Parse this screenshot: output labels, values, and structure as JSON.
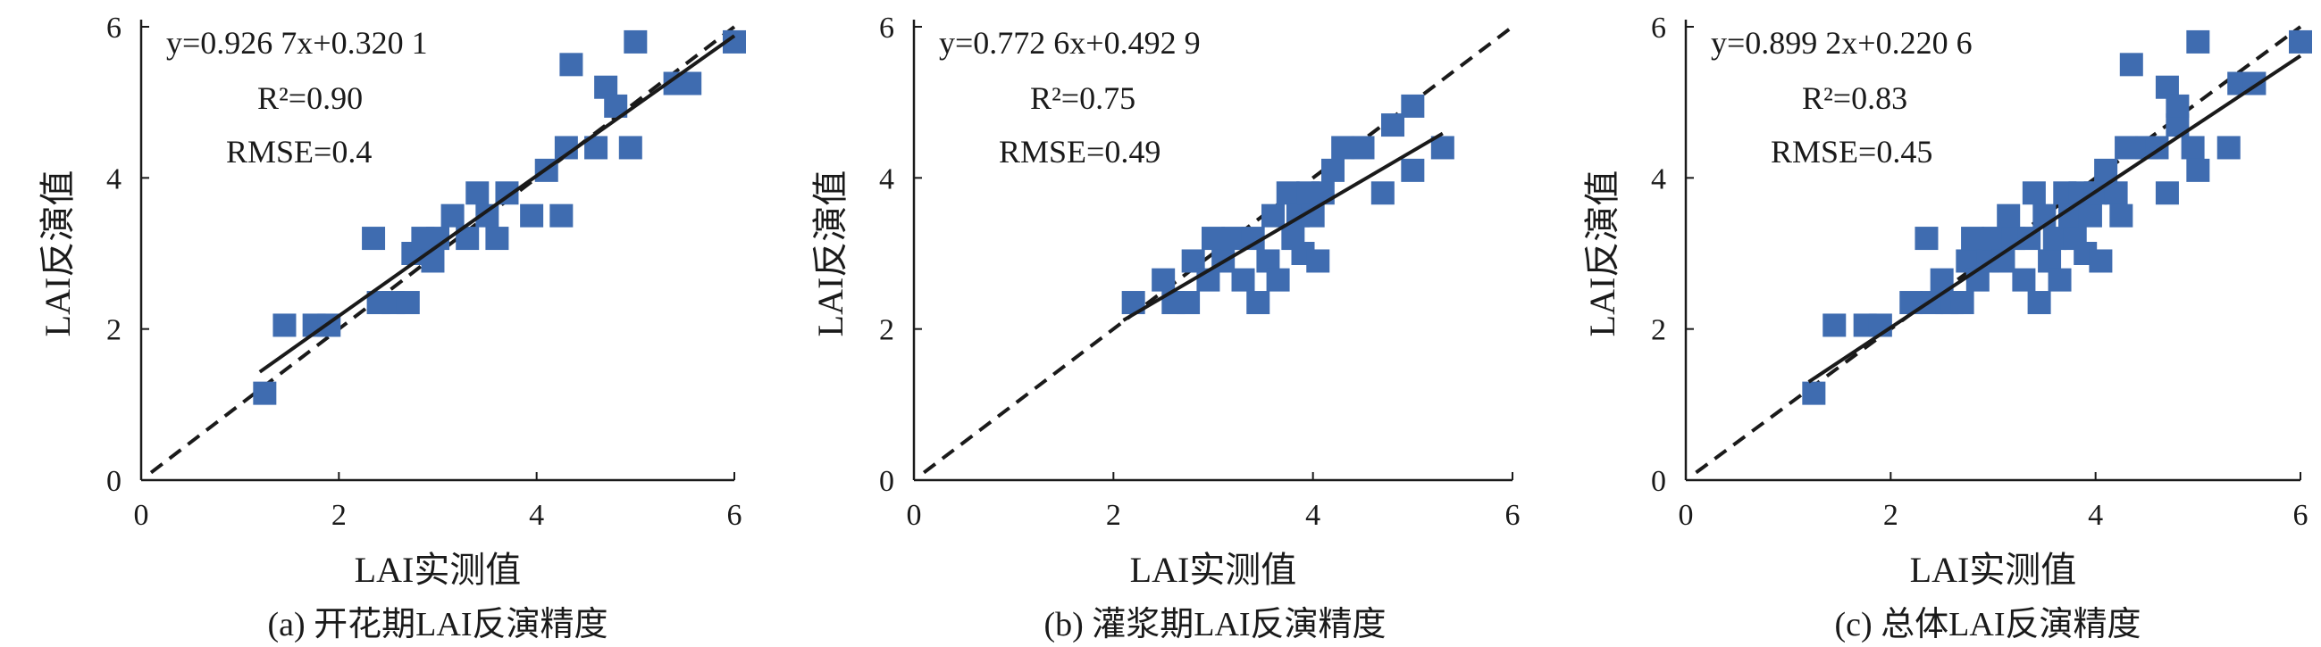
{
  "chart_data": [
    {
      "type": "scatter",
      "caption": "(a) 开花期LAI反演精度",
      "xlabel": "LAI实测值",
      "ylabel": "LAI反演值",
      "xlim": [
        0,
        6
      ],
      "ylim": [
        0,
        6
      ],
      "xticks": [
        "0",
        "2",
        "4",
        "6"
      ],
      "yticks": [
        "0",
        "2",
        "4",
        "6"
      ],
      "equation": "y=0.926 7x+0.320 1",
      "r2": "R²=0.90",
      "rmse": "RMSE=0.4",
      "marker_color": "#3F6CB0",
      "fit_line": {
        "slope": 0.9267,
        "intercept": 0.3201,
        "x_range": [
          1.2,
          6.0
        ]
      },
      "identity_line": {
        "x_range": [
          0.1,
          6.0
        ]
      },
      "points": [
        [
          1.25,
          1.15
        ],
        [
          1.45,
          2.05
        ],
        [
          1.75,
          2.05
        ],
        [
          1.9,
          2.05
        ],
        [
          2.35,
          3.2
        ],
        [
          2.4,
          2.35
        ],
        [
          2.55,
          2.35
        ],
        [
          2.7,
          2.35
        ],
        [
          2.75,
          3.0
        ],
        [
          2.85,
          3.2
        ],
        [
          2.95,
          2.9
        ],
        [
          3.0,
          3.2
        ],
        [
          3.15,
          3.5
        ],
        [
          3.3,
          3.2
        ],
        [
          3.4,
          3.8
        ],
        [
          3.5,
          3.5
        ],
        [
          3.6,
          3.2
        ],
        [
          3.7,
          3.8
        ],
        [
          3.95,
          3.5
        ],
        [
          4.1,
          4.1
        ],
        [
          4.25,
          3.5
        ],
        [
          4.3,
          4.4
        ],
        [
          4.35,
          5.5
        ],
        [
          4.6,
          4.4
        ],
        [
          4.7,
          5.2
        ],
        [
          4.8,
          4.95
        ],
        [
          4.95,
          4.4
        ],
        [
          5.0,
          5.8
        ],
        [
          5.4,
          5.25
        ],
        [
          5.55,
          5.25
        ],
        [
          6.0,
          5.8
        ]
      ]
    },
    {
      "type": "scatter",
      "caption": "(b) 灌浆期LAI反演精度",
      "xlabel": "LAI实测值",
      "ylabel": "LAI反演值",
      "xlim": [
        0,
        6
      ],
      "ylim": [
        0,
        6
      ],
      "xticks": [
        "0",
        "2",
        "4",
        "6"
      ],
      "yticks": [
        "0",
        "2",
        "4",
        "6"
      ],
      "equation": "y=0.772 6x+0.492 9",
      "r2": "R²=0.75",
      "rmse": "RMSE=0.49",
      "marker_color": "#3F6CB0",
      "fit_line": {
        "slope": 0.7726,
        "intercept": 0.4929,
        "x_range": [
          2.1,
          5.3
        ]
      },
      "identity_line": {
        "x_range": [
          0.1,
          6.0
        ]
      },
      "points": [
        [
          2.2,
          2.35
        ],
        [
          2.5,
          2.65
        ],
        [
          2.6,
          2.35
        ],
        [
          2.75,
          2.35
        ],
        [
          2.8,
          2.9
        ],
        [
          2.95,
          2.65
        ],
        [
          3.0,
          3.2
        ],
        [
          3.1,
          2.9
        ],
        [
          3.2,
          3.2
        ],
        [
          3.3,
          2.65
        ],
        [
          3.4,
          3.2
        ],
        [
          3.45,
          2.35
        ],
        [
          3.55,
          2.9
        ],
        [
          3.6,
          3.5
        ],
        [
          3.65,
          2.65
        ],
        [
          3.75,
          3.8
        ],
        [
          3.8,
          3.2
        ],
        [
          3.85,
          3.5
        ],
        [
          3.9,
          3.0
        ],
        [
          3.95,
          3.8
        ],
        [
          4.0,
          3.5
        ],
        [
          4.05,
          2.9
        ],
        [
          4.1,
          3.8
        ],
        [
          4.2,
          4.1
        ],
        [
          4.3,
          4.4
        ],
        [
          4.5,
          4.4
        ],
        [
          4.7,
          3.8
        ],
        [
          4.8,
          4.7
        ],
        [
          5.0,
          4.95
        ],
        [
          5.0,
          4.1
        ],
        [
          5.3,
          4.4
        ]
      ]
    },
    {
      "type": "scatter",
      "caption": "(c) 总体LAI反演精度",
      "xlabel": "LAI实测值",
      "ylabel": "LAI反演值",
      "xlim": [
        0,
        6
      ],
      "ylim": [
        0,
        6
      ],
      "xticks": [
        "0",
        "2",
        "4",
        "6"
      ],
      "yticks": [
        "0",
        "2",
        "4",
        "6"
      ],
      "equation": "y=0.899 2x+0.220 6",
      "r2": "R²=0.83",
      "rmse": "RMSE=0.45",
      "marker_color": "#3F6CB0",
      "fit_line": {
        "slope": 0.8992,
        "intercept": 0.2206,
        "x_range": [
          1.2,
          6.0
        ]
      },
      "identity_line": {
        "x_range": [
          0.1,
          6.0
        ]
      },
      "points": [
        [
          1.25,
          1.15
        ],
        [
          1.45,
          2.05
        ],
        [
          1.75,
          2.05
        ],
        [
          1.9,
          2.05
        ],
        [
          2.2,
          2.35
        ],
        [
          2.35,
          3.2
        ],
        [
          2.4,
          2.35
        ],
        [
          2.5,
          2.65
        ],
        [
          2.55,
          2.35
        ],
        [
          2.6,
          2.35
        ],
        [
          2.7,
          2.35
        ],
        [
          2.75,
          2.9
        ],
        [
          2.8,
          3.2
        ],
        [
          2.85,
          2.65
        ],
        [
          2.95,
          2.9
        ],
        [
          3.0,
          3.2
        ],
        [
          3.1,
          2.9
        ],
        [
          3.15,
          3.5
        ],
        [
          3.2,
          3.2
        ],
        [
          3.3,
          2.65
        ],
        [
          3.35,
          3.2
        ],
        [
          3.4,
          3.8
        ],
        [
          3.45,
          2.35
        ],
        [
          3.5,
          3.5
        ],
        [
          3.55,
          2.9
        ],
        [
          3.6,
          3.2
        ],
        [
          3.65,
          2.65
        ],
        [
          3.7,
          3.8
        ],
        [
          3.75,
          3.5
        ],
        [
          3.8,
          3.2
        ],
        [
          3.85,
          3.8
        ],
        [
          3.9,
          3.0
        ],
        [
          3.95,
          3.5
        ],
        [
          4.0,
          3.8
        ],
        [
          4.05,
          2.9
        ],
        [
          4.1,
          4.1
        ],
        [
          4.2,
          3.8
        ],
        [
          4.25,
          3.5
        ],
        [
          4.3,
          4.4
        ],
        [
          4.35,
          5.5
        ],
        [
          4.5,
          4.4
        ],
        [
          4.6,
          4.4
        ],
        [
          4.7,
          5.2
        ],
        [
          4.7,
          3.8
        ],
        [
          4.8,
          4.7
        ],
        [
          4.8,
          4.95
        ],
        [
          4.95,
          4.4
        ],
        [
          5.0,
          5.8
        ],
        [
          5.0,
          4.1
        ],
        [
          5.3,
          4.4
        ],
        [
          5.4,
          5.25
        ],
        [
          5.55,
          5.25
        ],
        [
          6.0,
          5.8
        ]
      ]
    }
  ]
}
